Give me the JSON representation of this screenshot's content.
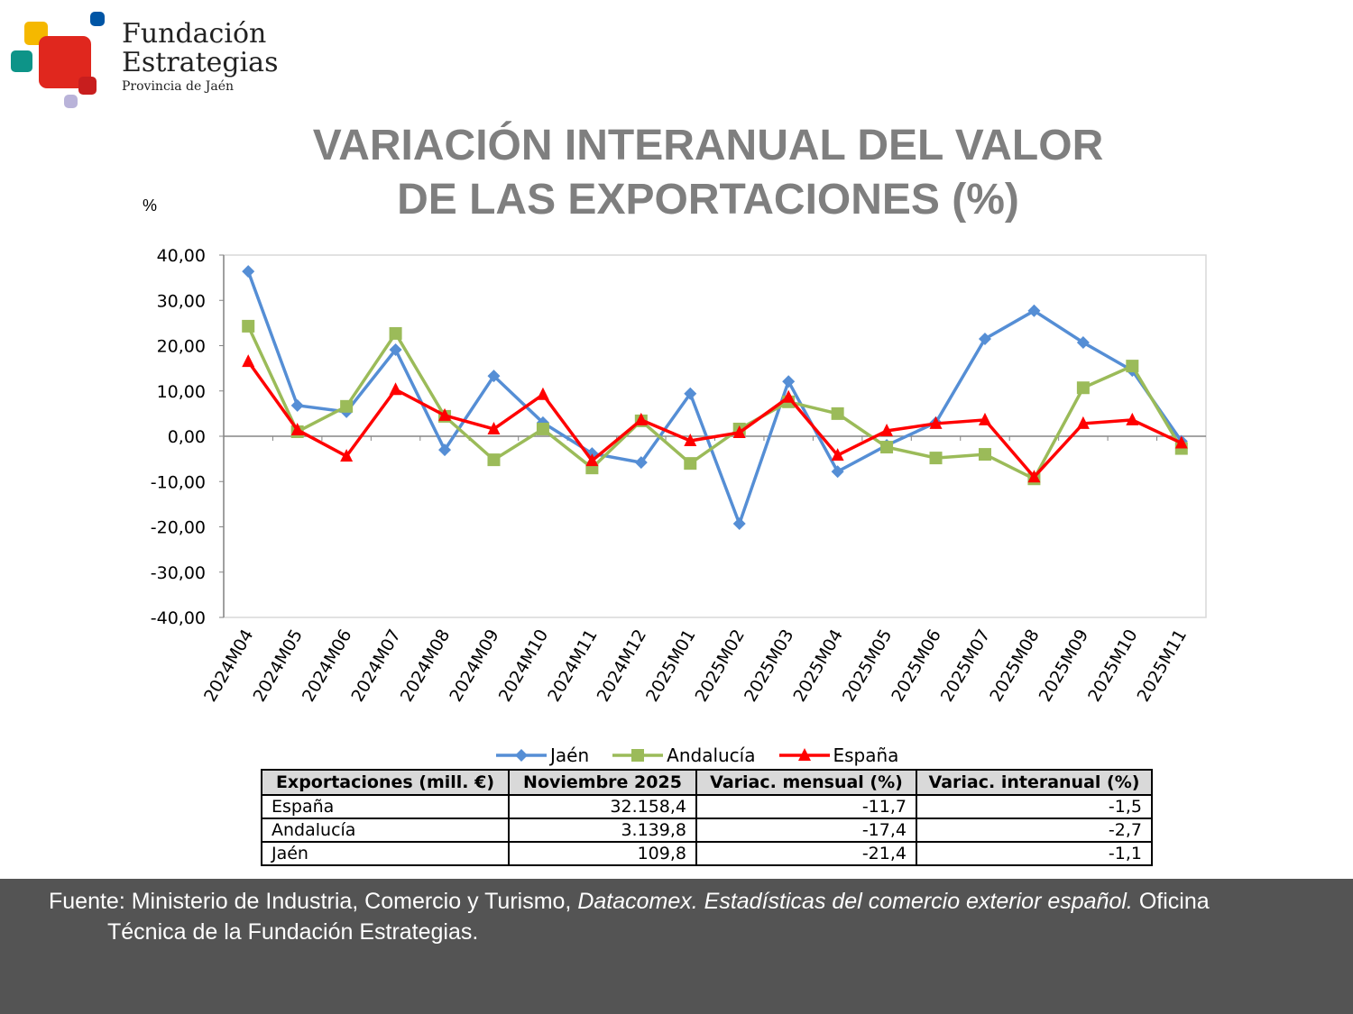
{
  "logo": {
    "line1": "Fundación",
    "line2": "Estrategias",
    "line3": "Provincia de Jaén",
    "colors": [
      "#f5b800",
      "#e0271e",
      "#0d9488",
      "#0055a5",
      "#b9b3d9"
    ]
  },
  "title_line1": "VARIACIÓN INTERANUAL DEL VALOR",
  "title_line2": "DE LAS EXPORTACIONES (%)",
  "chart_data": {
    "type": "line",
    "ylabel": "%",
    "ylim": [
      -40,
      40
    ],
    "yticks": [
      "40,00",
      "30,00",
      "20,00",
      "10,00",
      "0,00",
      "-10,00",
      "-20,00",
      "-30,00",
      "-40,00"
    ],
    "grid": false,
    "legend": "bottom",
    "categories": [
      "2024M04",
      "2024M05",
      "2024M06",
      "2024M07",
      "2024M08",
      "2024M09",
      "2024M10",
      "2024M11",
      "2024M12",
      "2025M01",
      "2025M02",
      "2025M03",
      "2025M04",
      "2025M05",
      "2025M06",
      "2025M07",
      "2025M08",
      "2025M09",
      "2025M10",
      "2025M11"
    ],
    "series": [
      {
        "name": "Jaén",
        "color": "#558ed5",
        "marker": "diamond",
        "values": [
          36.4,
          6.8,
          5.4,
          19.1,
          -3.0,
          13.3,
          3.0,
          -3.8,
          -5.8,
          9.4,
          -19.3,
          12.1,
          -7.8,
          -2.0,
          3.0,
          21.5,
          27.7,
          20.7,
          14.5,
          -1.1
        ]
      },
      {
        "name": "Andalucía",
        "color": "#9bbb59",
        "marker": "square",
        "values": [
          24.3,
          1.0,
          6.6,
          22.7,
          4.4,
          -5.2,
          1.6,
          -7.0,
          3.4,
          -6.0,
          1.6,
          7.6,
          5.0,
          -2.4,
          -4.8,
          -4.0,
          -9.4,
          10.7,
          15.5,
          -2.7
        ]
      },
      {
        "name": "España",
        "color": "#ff0000",
        "marker": "triangle",
        "values": [
          16.5,
          1.4,
          -4.4,
          10.3,
          4.6,
          1.6,
          9.2,
          -5.4,
          3.6,
          -1.0,
          0.8,
          8.6,
          -4.2,
          1.2,
          2.8,
          3.6,
          -9.0,
          2.8,
          3.6,
          -1.5
        ]
      }
    ]
  },
  "table": {
    "headers": [
      "Exportaciones (mill. €)",
      "Noviembre 2025",
      "Variac. mensual (%)",
      "Variac. interanual (%)"
    ],
    "rows": [
      [
        "España",
        "32.158,4",
        "-11,7",
        "-1,5"
      ],
      [
        "Andalucía",
        "3.139,8",
        "-17,4",
        "-2,7"
      ],
      [
        "Jaén",
        "109,8",
        "-21,4",
        "-1,1"
      ]
    ]
  },
  "footer": {
    "pre": "Fuente: Ministerio de Industria, Comercio y Turismo, ",
    "italic": "Datacomex. Estadísticas del comercio exterior español.",
    "post": " Oficina",
    "line2": "Técnica de la Fundación Estrategias."
  }
}
